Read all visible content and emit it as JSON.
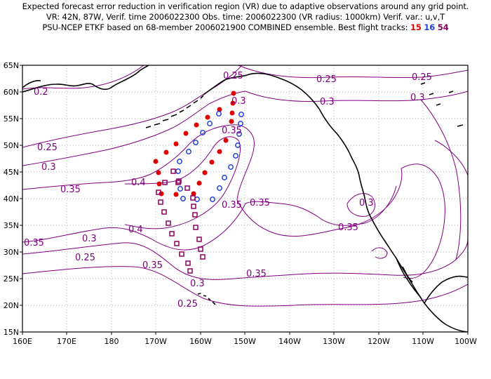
{
  "header": {
    "line1": "Expected forecast error reduction in verification region (VR) due to adaptive observations around any grid point.",
    "line2": "VR: 42N, 87W, Verif. time 2006022300   Obs. time: 2006022300 (VR radius: 1000km)    Verif. var.: u,v,T",
    "line3_prefix": "PSU-NCEP ETKF based on 68-member 2006021900 COMBINED ensemble.   Best flight tracks:",
    "track_15": "15",
    "track_16": "16",
    "track_54": "54"
  },
  "map": {
    "lon_labels": [
      "160E",
      "170E",
      "180",
      "170W",
      "160W",
      "150W",
      "140W",
      "130W",
      "120W",
      "110W",
      "100W"
    ],
    "lat_labels": [
      "15N",
      "20N",
      "25N",
      "30N",
      "35N",
      "40N",
      "45N",
      "50N",
      "55N",
      "60N",
      "65N"
    ],
    "contour_labels": [
      "0.25",
      "0.25",
      "0.25",
      "0.2",
      "0.3",
      "0.3",
      "0.25",
      "0.3",
      "0.35",
      "0.4",
      "0.35",
      "0.35",
      "0.3",
      "0.4",
      "0.35",
      "0.35",
      "0.3",
      "0.25",
      "0.35",
      "0.3",
      "0.25",
      "0.3",
      "0.35",
      "0.35"
    ],
    "colors": {
      "contour": "#800080",
      "track_15": "#e00000",
      "track_16": "#2040e0",
      "track_54": "#900060",
      "verification_circle": "#e00000",
      "coastline": "#000000"
    }
  }
}
